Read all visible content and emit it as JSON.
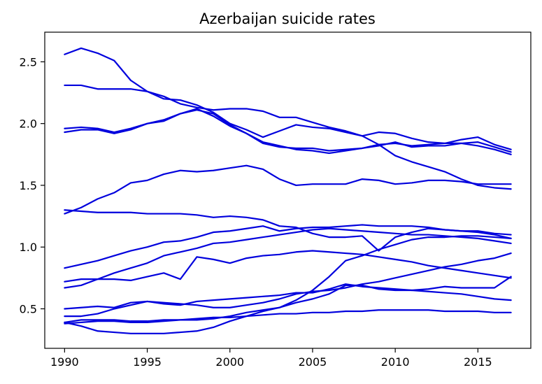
{
  "chart_data": {
    "type": "line",
    "title": "Azerbaijan suicide rates",
    "xlabel": "",
    "ylabel": "",
    "xlim": [
      1988.8,
      2018.2
    ],
    "ylim": [
      0.18,
      2.74
    ],
    "xticks": [
      1990,
      1995,
      2000,
      2005,
      2010,
      2015
    ],
    "yticks": [
      0.5,
      1.0,
      1.5,
      2.0,
      2.5
    ],
    "grid": false,
    "line_color": "#0000dd",
    "x": [
      1990,
      1991,
      1992,
      1993,
      1994,
      1995,
      1996,
      1997,
      1998,
      1999,
      2000,
      2001,
      2002,
      2003,
      2004,
      2005,
      2006,
      2007,
      2008,
      2009,
      2010,
      2011,
      2012,
      2013,
      2014,
      2015,
      2016,
      2017
    ],
    "series": [
      {
        "values": [
          2.56,
          2.61,
          2.57,
          2.51,
          2.35,
          2.26,
          2.2,
          2.19,
          2.15,
          2.09,
          2.0,
          1.95,
          1.89,
          1.94,
          1.99,
          1.97,
          1.96,
          1.93,
          1.9,
          1.93,
          1.92,
          1.88,
          1.85,
          1.84,
          1.87,
          1.89,
          1.83,
          1.79
        ]
      },
      {
        "values": [
          2.31,
          2.31,
          2.28,
          2.28,
          2.28,
          2.26,
          2.22,
          2.16,
          2.13,
          2.11,
          2.12,
          2.12,
          2.1,
          2.05,
          2.05,
          2.01,
          1.97,
          1.94,
          1.9,
          1.83,
          1.74,
          1.69,
          1.65,
          1.61,
          1.55,
          1.5,
          1.48,
          1.47
        ]
      },
      {
        "values": [
          1.96,
          1.97,
          1.96,
          1.93,
          1.96,
          2.0,
          2.02,
          2.08,
          2.11,
          2.08,
          1.99,
          1.92,
          1.85,
          1.82,
          1.79,
          1.78,
          1.76,
          1.78,
          1.8,
          1.82,
          1.85,
          1.81,
          1.82,
          1.82,
          1.84,
          1.82,
          1.79,
          1.75
        ]
      },
      {
        "values": [
          1.93,
          1.95,
          1.95,
          1.92,
          1.95,
          2.0,
          2.03,
          2.08,
          2.12,
          2.06,
          1.98,
          1.92,
          1.84,
          1.81,
          1.8,
          1.8,
          1.78,
          1.79,
          1.8,
          1.83,
          1.84,
          1.82,
          1.83,
          1.84,
          1.84,
          1.85,
          1.81,
          1.77
        ]
      },
      {
        "values": [
          1.27,
          1.32,
          1.39,
          1.44,
          1.52,
          1.54,
          1.59,
          1.62,
          1.61,
          1.62,
          1.64,
          1.66,
          1.63,
          1.55,
          1.5,
          1.51,
          1.51,
          1.51,
          1.55,
          1.54,
          1.51,
          1.52,
          1.54,
          1.54,
          1.53,
          1.51,
          1.51,
          1.51
        ]
      },
      {
        "values": [
          1.3,
          1.29,
          1.28,
          1.28,
          1.28,
          1.27,
          1.27,
          1.27,
          1.26,
          1.24,
          1.25,
          1.24,
          1.22,
          1.17,
          1.16,
          1.11,
          1.08,
          1.08,
          1.09,
          0.97,
          1.08,
          1.12,
          1.15,
          1.14,
          1.13,
          1.13,
          1.11,
          1.1
        ]
      },
      {
        "values": [
          0.83,
          0.86,
          0.89,
          0.93,
          0.97,
          1.0,
          1.04,
          1.05,
          1.08,
          1.12,
          1.13,
          1.15,
          1.17,
          1.13,
          1.15,
          1.16,
          1.16,
          1.17,
          1.18,
          1.17,
          1.17,
          1.17,
          1.16,
          1.14,
          1.13,
          1.12,
          1.1,
          1.07
        ]
      },
      {
        "values": [
          0.72,
          0.74,
          0.74,
          0.74,
          0.73,
          0.76,
          0.79,
          0.74,
          0.92,
          0.9,
          0.87,
          0.91,
          0.93,
          0.94,
          0.96,
          0.97,
          0.96,
          0.95,
          0.94,
          0.92,
          0.9,
          0.88,
          0.85,
          0.83,
          0.81,
          0.79,
          0.77,
          0.75
        ]
      },
      {
        "values": [
          0.67,
          0.69,
          0.74,
          0.79,
          0.83,
          0.87,
          0.93,
          0.96,
          0.99,
          1.03,
          1.04,
          1.06,
          1.08,
          1.1,
          1.12,
          1.14,
          1.15,
          1.14,
          1.13,
          1.12,
          1.11,
          1.1,
          1.1,
          1.09,
          1.08,
          1.07,
          1.05,
          1.03
        ]
      },
      {
        "values": [
          0.5,
          0.51,
          0.52,
          0.51,
          0.55,
          0.56,
          0.55,
          0.54,
          0.53,
          0.51,
          0.51,
          0.53,
          0.55,
          0.58,
          0.62,
          0.64,
          0.65,
          0.67,
          0.7,
          0.72,
          0.75,
          0.78,
          0.81,
          0.84,
          0.86,
          0.89,
          0.91,
          0.95
        ]
      },
      {
        "values": [
          0.44,
          0.44,
          0.46,
          0.5,
          0.53,
          0.56,
          0.54,
          0.53,
          0.56,
          0.57,
          0.58,
          0.59,
          0.6,
          0.61,
          0.63,
          0.63,
          0.66,
          0.7,
          0.68,
          0.67,
          0.66,
          0.65,
          0.64,
          0.63,
          0.62,
          0.6,
          0.58,
          0.57
        ]
      },
      {
        "values": [
          0.39,
          0.41,
          0.41,
          0.41,
          0.4,
          0.4,
          0.41,
          0.41,
          0.41,
          0.42,
          0.44,
          0.47,
          0.49,
          0.51,
          0.55,
          0.58,
          0.62,
          0.69,
          0.69,
          0.66,
          0.65,
          0.65,
          0.66,
          0.68,
          0.67,
          0.67,
          0.67,
          0.76
        ]
      },
      {
        "values": [
          0.39,
          0.36,
          0.32,
          0.31,
          0.3,
          0.3,
          0.3,
          0.31,
          0.32,
          0.35,
          0.4,
          0.44,
          0.48,
          0.51,
          0.57,
          0.65,
          0.76,
          0.89,
          0.93,
          0.98,
          1.02,
          1.06,
          1.08,
          1.08,
          1.09,
          1.09,
          1.08,
          1.07
        ]
      },
      {
        "values": [
          0.38,
          0.39,
          0.4,
          0.4,
          0.39,
          0.39,
          0.4,
          0.41,
          0.42,
          0.43,
          0.43,
          0.44,
          0.45,
          0.46,
          0.46,
          0.47,
          0.47,
          0.48,
          0.48,
          0.49,
          0.49,
          0.49,
          0.49,
          0.48,
          0.48,
          0.48,
          0.47,
          0.47
        ]
      }
    ]
  }
}
